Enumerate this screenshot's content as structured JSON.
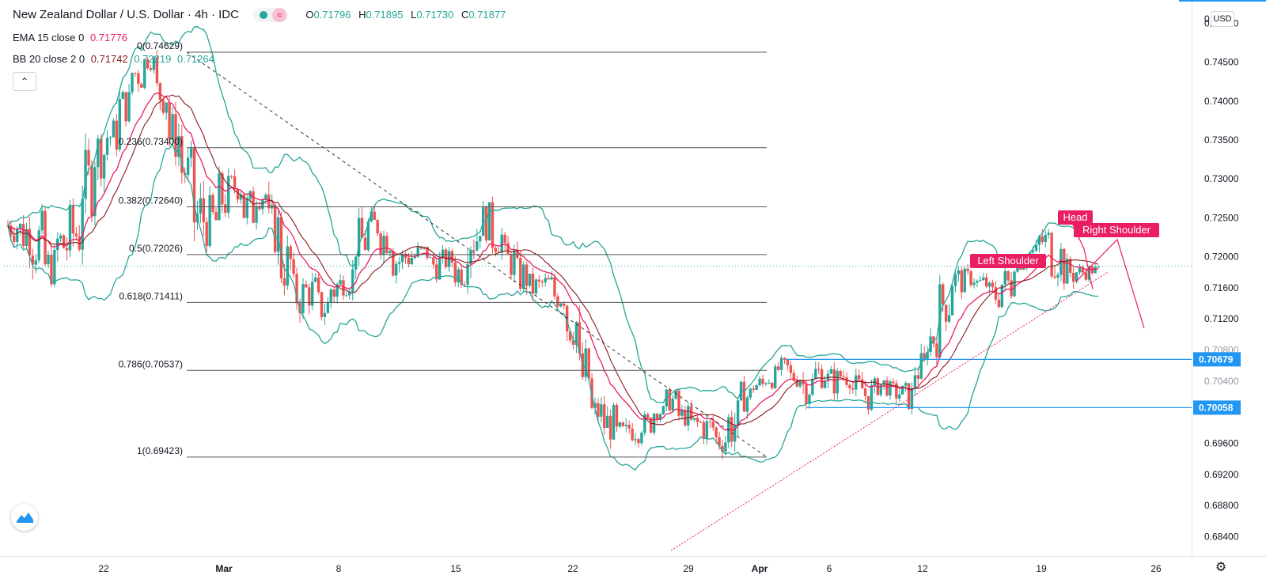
{
  "header": {
    "symbol": "New Zealand Dollar / U.S. Dollar",
    "interval": "4h",
    "exchange": "IDC",
    "ohlc": [
      {
        "key": "O",
        "value": "0.71796"
      },
      {
        "key": "H",
        "value": "0.71895"
      },
      {
        "key": "L",
        "value": "0.71730"
      },
      {
        "key": "C",
        "value": "0.71877"
      }
    ]
  },
  "indicators": {
    "ema": {
      "label": "EMA 15 close 0",
      "value": "0.71776"
    },
    "bb": {
      "label": "BB 20 close 2 0",
      "basis": "0.71742",
      "upper": "0.72219",
      "lower": "0.71264"
    }
  },
  "ui": {
    "collapse_icon": "chevron-up-icon",
    "currency": "USD",
    "logo_icon": "tradingview-logo-icon",
    "settings_icon": "gear-icon",
    "settings_glyph": "⚙",
    "collapse_glyph": "⌃"
  },
  "colors": {
    "up": "#26a69a",
    "down": "#ef5350",
    "ema": "#e91e63",
    "bb_band": "#26a69a",
    "bb_basis": "#8b1a1a",
    "fib_line": "#555555",
    "hline": "#2196f3",
    "annotation": "#e91e63"
  },
  "chart_data": {
    "type": "candlestick",
    "title": "New Zealand Dollar / U.S. Dollar, 4h, IDC",
    "ylim": [
      0.6815,
      0.753
    ],
    "y_ticks": [
      "0.75000",
      "0.74500",
      "0.74000",
      "0.73500",
      "0.73000",
      "0.72500",
      "0.72000",
      "0.71600",
      "0.71200",
      "0.70800",
      "0.70400",
      "0.69600",
      "0.69200",
      "0.68800",
      "0.68400"
    ],
    "y_ticks_partial": [
      "0.70800",
      "0.70400"
    ],
    "x_ticks": [
      "22",
      "Mar",
      "8",
      "15",
      "22",
      "29",
      "Apr",
      "6",
      "12",
      "19",
      "26"
    ],
    "x_tick_bold": [
      "Mar",
      "Apr"
    ],
    "price_path": [
      [
        0.7215,
        0.7265
      ],
      [
        0.7198,
        0.7265
      ],
      [
        0.718,
        0.726
      ],
      [
        0.716,
        0.7215
      ],
      [
        0.7175,
        0.7255
      ],
      [
        0.719,
        0.727
      ],
      [
        0.725,
        0.734
      ],
      [
        0.73,
        0.737
      ],
      [
        0.733,
        0.738
      ],
      [
        0.737,
        0.742
      ],
      [
        0.741,
        0.7463
      ],
      [
        0.744,
        0.7462
      ],
      [
        0.738,
        0.744
      ],
      [
        0.732,
        0.739
      ],
      [
        0.728,
        0.734
      ],
      [
        0.72,
        0.73
      ],
      [
        0.721,
        0.728
      ],
      [
        0.724,
        0.731
      ],
      [
        0.727,
        0.731
      ],
      [
        0.723,
        0.729
      ],
      [
        0.726,
        0.73
      ],
      [
        0.72,
        0.727
      ],
      [
        0.715,
        0.723
      ],
      [
        0.712,
        0.718
      ],
      [
        0.713,
        0.718
      ],
      [
        0.711,
        0.716
      ],
      [
        0.713,
        0.719
      ],
      [
        0.715,
        0.72
      ],
      [
        0.719,
        0.725
      ],
      [
        0.722,
        0.726
      ],
      [
        0.72,
        0.725
      ],
      [
        0.717,
        0.722
      ],
      [
        0.718,
        0.722
      ],
      [
        0.719,
        0.722
      ],
      [
        0.717,
        0.721
      ],
      [
        0.718,
        0.721
      ],
      [
        0.716,
        0.72
      ],
      [
        0.719,
        0.7265
      ],
      [
        0.722,
        0.727
      ],
      [
        0.72,
        0.725
      ],
      [
        0.717,
        0.722
      ],
      [
        0.715,
        0.72
      ],
      [
        0.714,
        0.718
      ],
      [
        0.715,
        0.718
      ],
      [
        0.713,
        0.717
      ],
      [
        0.708,
        0.715
      ],
      [
        0.7,
        0.709
      ],
      [
        0.698,
        0.702
      ],
      [
        0.696,
        0.701
      ],
      [
        0.695,
        0.699
      ],
      [
        0.696,
        0.7
      ],
      [
        0.697,
        0.7
      ],
      [
        0.699,
        0.701
      ],
      [
        0.7,
        0.703
      ],
      [
        0.698,
        0.701
      ],
      [
        0.697,
        0.7
      ],
      [
        0.696,
        0.7
      ],
      [
        0.6945,
        0.6985
      ],
      [
        0.695,
        0.702
      ],
      [
        0.7,
        0.704
      ],
      [
        0.702,
        0.705
      ],
      [
        0.703,
        0.706
      ],
      [
        0.704,
        0.707
      ],
      [
        0.703,
        0.706
      ],
      [
        0.701,
        0.706
      ],
      [
        0.703,
        0.707
      ],
      [
        0.702,
        0.706
      ],
      [
        0.703,
        0.7065
      ],
      [
        0.701,
        0.705
      ],
      [
        0.7,
        0.7045
      ],
      [
        0.702,
        0.705
      ],
      [
        0.701,
        0.704
      ],
      [
        0.7,
        0.704
      ],
      [
        0.703,
        0.708
      ],
      [
        0.707,
        0.712
      ],
      [
        0.711,
        0.717
      ],
      [
        0.715,
        0.719
      ],
      [
        0.716,
        0.7185
      ],
      [
        0.715,
        0.718
      ],
      [
        0.713,
        0.717
      ],
      [
        0.714,
        0.719
      ],
      [
        0.718,
        0.721
      ],
      [
        0.719,
        0.722
      ],
      [
        0.72,
        0.724
      ],
      [
        0.717,
        0.723
      ],
      [
        0.716,
        0.72
      ],
      [
        0.717,
        0.719
      ],
      [
        0.7175,
        0.719
      ]
    ],
    "fibonacci": [
      {
        "label": "0(0.74629)",
        "value": 0.74629
      },
      {
        "label": "0.236(0.73400)",
        "value": 0.734
      },
      {
        "label": "0.382(0.72640)",
        "value": 0.7264
      },
      {
        "label": "0.5(0.72026)",
        "value": 0.72026
      },
      {
        "label": "0.618(0.71411)",
        "value": 0.71411
      },
      {
        "label": "0.786(0.70537)",
        "value": 0.70537
      },
      {
        "label": "1(0.69423)",
        "value": 0.69423
      }
    ],
    "horizontal_lines": [
      {
        "label": "0.70679",
        "value": 0.70679
      },
      {
        "label": "0.70058",
        "value": 0.70058
      }
    ],
    "current_price": 0.71877,
    "annotations": [
      "Left Shoulder",
      "Head",
      "Right Shoulder"
    ]
  }
}
